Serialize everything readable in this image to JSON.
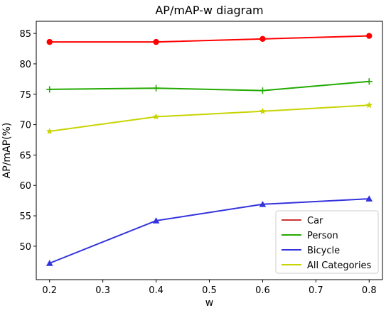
{
  "chart_data": {
    "type": "line",
    "title": "AP/mAP-w diagram",
    "xlabel": "w",
    "ylabel": "AP/mAP(%)",
    "x": [
      0.2,
      0.4,
      0.6,
      0.8
    ],
    "xlim": [
      0.175,
      0.825
    ],
    "ylim": [
      44.5,
      87.0
    ],
    "xticks": [
      0.2,
      0.3,
      0.4,
      0.5,
      0.6,
      0.7,
      0.8
    ],
    "xtick_labels": [
      "0.2",
      "0.3",
      "0.4",
      "0.5",
      "0.6",
      "0.7",
      "0.8"
    ],
    "yticks": [
      50,
      55,
      60,
      65,
      70,
      75,
      80,
      85
    ],
    "ytick_labels": [
      "50",
      "55",
      "60",
      "65",
      "70",
      "75",
      "80",
      "85"
    ],
    "grid": false,
    "legend_position": "bottom-right",
    "series": [
      {
        "name": "Car",
        "values": [
          83.6,
          83.6,
          84.1,
          84.6
        ],
        "color": "#ff0000",
        "marker": "circle"
      },
      {
        "name": "Person",
        "values": [
          75.8,
          76.0,
          75.6,
          77.1
        ],
        "color": "#22aa00",
        "marker": "plus"
      },
      {
        "name": "Bicycle",
        "values": [
          47.2,
          54.2,
          56.9,
          57.8
        ],
        "color": "#3333dd",
        "marker": "triangle"
      },
      {
        "name": "All Categories",
        "values": [
          68.9,
          71.3,
          72.2,
          73.2
        ],
        "color": "#c8d400",
        "marker": "star"
      }
    ],
    "legend_colors": [
      "#cc3333",
      "#22aa00",
      "#3333dd",
      "#c8d400"
    ]
  }
}
